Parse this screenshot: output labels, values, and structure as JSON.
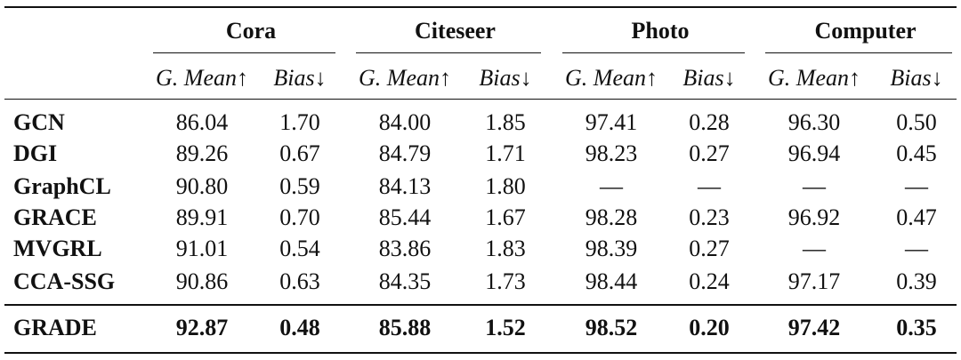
{
  "table": {
    "groups": [
      "Cora",
      "Citeseer",
      "Photo",
      "Computer"
    ],
    "metrics": [
      "G. Mean↑",
      "Bias↓",
      "G. Mean↑",
      "Bias↓",
      "G. Mean↑",
      "Bias↓",
      "G. Mean↑",
      "Bias↓"
    ],
    "rows": [
      {
        "name": "GCN",
        "cells": [
          "86.04",
          "1.70",
          "84.00",
          "1.85",
          "97.41",
          "0.28",
          "96.30",
          "0.50"
        ]
      },
      {
        "name": "DGI",
        "cells": [
          "89.26",
          "0.67",
          "84.79",
          "1.71",
          "98.23",
          "0.27",
          "96.94",
          "0.45"
        ]
      },
      {
        "name": "GraphCL",
        "cells": [
          "90.80",
          "0.59",
          "84.13",
          "1.80",
          "—",
          "—",
          "—",
          "—"
        ]
      },
      {
        "name": "GRACE",
        "cells": [
          "89.91",
          "0.70",
          "85.44",
          "1.67",
          "98.28",
          "0.23",
          "96.92",
          "0.47"
        ]
      },
      {
        "name": "MVGRL",
        "cells": [
          "91.01",
          "0.54",
          "83.86",
          "1.83",
          "98.39",
          "0.27",
          "—",
          "—"
        ]
      },
      {
        "name": "CCA-SSG",
        "cells": [
          "90.86",
          "0.63",
          "84.35",
          "1.73",
          "98.44",
          "0.24",
          "97.17",
          "0.39"
        ]
      }
    ],
    "best": {
      "name": "GRADE",
      "cells": [
        "92.87",
        "0.48",
        "85.88",
        "1.52",
        "98.52",
        "0.20",
        "97.42",
        "0.35"
      ]
    }
  }
}
